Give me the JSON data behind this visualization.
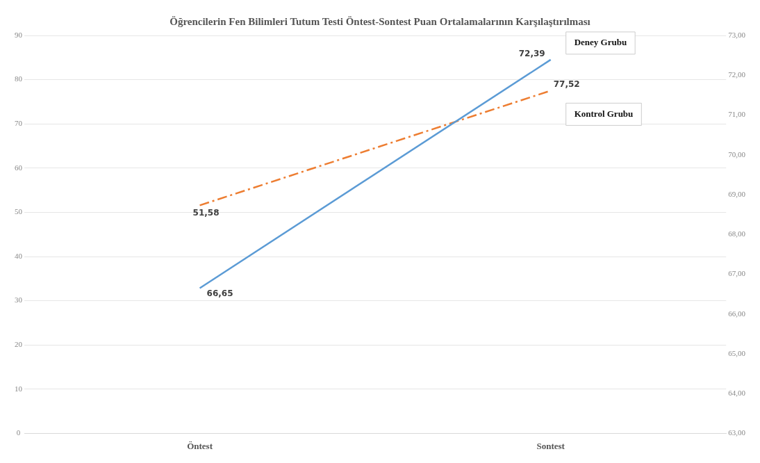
{
  "chart_data": {
    "type": "line",
    "title": "Öğrencilerin Fen Bilimleri Tutum Testi Öntest-Sontest Puan Ortalamalarının Karşılaştırılması",
    "categories": [
      "Öntest",
      "Sontest"
    ],
    "series": [
      {
        "name": "Deney Grubu",
        "color": "#5b9bd5",
        "values": [
          66.65,
          72.39
        ],
        "axis": "y2",
        "line_style": "solid",
        "value_labels": [
          "66,65",
          "72,39"
        ]
      },
      {
        "name": "Kontrol Grubu",
        "color": "#ed7d31",
        "values": [
          51.58,
          77.52
        ],
        "axis": "y",
        "line_style": "dashed",
        "value_labels": [
          "51,58",
          "77,52"
        ]
      }
    ],
    "ylim": [
      0,
      90
    ],
    "yticks": [
      0,
      10,
      20,
      30,
      40,
      50,
      60,
      70,
      80,
      90
    ],
    "y2lim": [
      63,
      73
    ],
    "y2ticks": [
      {
        "value": 63,
        "label": "63,00"
      },
      {
        "value": 64,
        "label": "64,00"
      },
      {
        "value": 65,
        "label": "65,00"
      },
      {
        "value": 66,
        "label": "66,00"
      },
      {
        "value": 67,
        "label": "67,00"
      },
      {
        "value": 68,
        "label": "68,00"
      },
      {
        "value": 69,
        "label": "69,00"
      },
      {
        "value": 70,
        "label": "70,00"
      },
      {
        "value": 71,
        "label": "71,00"
      },
      {
        "value": 72,
        "label": "72,00"
      },
      {
        "value": 73,
        "label": "73,00"
      }
    ],
    "grid": "y",
    "legend": false,
    "marker": "none"
  }
}
